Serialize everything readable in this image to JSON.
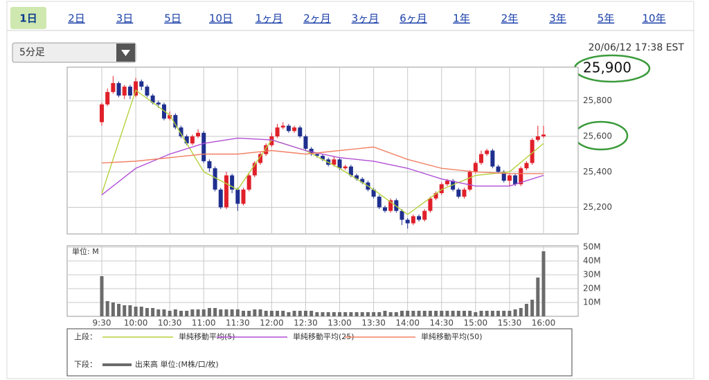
{
  "tabs": [
    "1日",
    "2日",
    "3日",
    "5日",
    "10日",
    "1ヶ月",
    "2ヶ月",
    "3ヶ月",
    "6ヶ月",
    "1年",
    "2年",
    "3年",
    "5年",
    "10年"
  ],
  "selected_tab": 0,
  "interval_select": "5分足",
  "timestamp": "20/06/12 17:38 EST",
  "current_price": "25,900",
  "chart_data": [
    {
      "type": "candlestick",
      "legend_label": "上段：",
      "up_color": "#e0202a",
      "down_color": "#1f2f8f",
      "open": [
        25680,
        25780,
        25850,
        25900,
        25830,
        25880,
        25830,
        25910,
        25880,
        25830,
        25790,
        25780,
        25700,
        25720,
        25650,
        25600,
        25560,
        25600,
        25620,
        25460,
        25420,
        25300,
        25200,
        25380,
        25300,
        25220,
        25300,
        25380,
        25450,
        25500,
        25550,
        25600,
        25650,
        25660,
        25630,
        25650,
        25600,
        25530,
        25500,
        25490,
        25470,
        25440,
        25470,
        25420,
        25430,
        25380,
        25360,
        25340,
        25300,
        25260,
        25200,
        25180,
        25240,
        25180,
        25130,
        25110,
        25150,
        25130,
        25180,
        25250,
        25280,
        25330,
        25350,
        25300,
        25260,
        25300,
        25400,
        25450,
        25500,
        25520,
        25430,
        25400,
        25350,
        25380,
        25330,
        25420,
        25450,
        25580,
        25600
      ],
      "high": [
        25790,
        25870,
        25940,
        25910,
        25890,
        25890,
        25930,
        25920,
        25890,
        25840,
        25800,
        25790,
        25740,
        25730,
        25660,
        25610,
        25610,
        25640,
        25630,
        25470,
        25430,
        25310,
        25400,
        25390,
        25310,
        25310,
        25390,
        25460,
        25510,
        25560,
        25620,
        25670,
        25680,
        25670,
        25660,
        25660,
        25610,
        25540,
        25510,
        25500,
        25480,
        25490,
        25480,
        25440,
        25440,
        25390,
        25370,
        25350,
        25310,
        25270,
        25210,
        25250,
        25250,
        25190,
        25140,
        25160,
        25160,
        25190,
        25260,
        25290,
        25340,
        25360,
        25360,
        25310,
        25310,
        25410,
        25460,
        25520,
        25530,
        25530,
        25440,
        25410,
        25390,
        25390,
        25430,
        25460,
        25590,
        25660,
        25660
      ],
      "low": [
        25660,
        25770,
        25840,
        25820,
        25810,
        25810,
        25820,
        25860,
        25820,
        25780,
        25760,
        25690,
        25690,
        25640,
        25590,
        25550,
        25550,
        25590,
        25450,
        25400,
        25290,
        25190,
        25190,
        25280,
        25180,
        25210,
        25290,
        25370,
        25440,
        25490,
        25540,
        25590,
        25640,
        25620,
        25620,
        25590,
        25520,
        25490,
        25480,
        25460,
        25430,
        25430,
        25410,
        25410,
        25370,
        25350,
        25330,
        25290,
        25250,
        25190,
        25170,
        25170,
        25170,
        25100,
        25080,
        25100,
        25120,
        25120,
        25170,
        25240,
        25270,
        25320,
        25290,
        25250,
        25250,
        25290,
        25390,
        25440,
        25490,
        25420,
        25390,
        25340,
        25320,
        25320,
        25320,
        25410,
        25440,
        25570,
        25590
      ],
      "close": [
        25780,
        25850,
        25900,
        25830,
        25880,
        25830,
        25910,
        25880,
        25830,
        25790,
        25780,
        25700,
        25720,
        25650,
        25600,
        25560,
        25600,
        25620,
        25460,
        25420,
        25300,
        25200,
        25380,
        25300,
        25220,
        25300,
        25380,
        25450,
        25500,
        25550,
        25600,
        25650,
        25660,
        25630,
        25650,
        25600,
        25530,
        25500,
        25490,
        25470,
        25440,
        25470,
        25420,
        25430,
        25380,
        25360,
        25340,
        25300,
        25260,
        25200,
        25180,
        25240,
        25180,
        25130,
        25110,
        25150,
        25130,
        25180,
        25250,
        25280,
        25330,
        25350,
        25300,
        25260,
        25300,
        25400,
        25450,
        25500,
        25520,
        25430,
        25400,
        25350,
        25380,
        25330,
        25420,
        25450,
        25580,
        25600,
        25610
      ],
      "series": [
        {
          "name": "単純移動平均(5)",
          "color": "#b3d13a",
          "x": [
            "9:30",
            "10:00",
            "10:30",
            "11:00",
            "11:30",
            "12:00",
            "12:30",
            "13:00",
            "13:30",
            "14:00",
            "14:30",
            "15:00",
            "15:30",
            "16:00"
          ],
          "values": [
            25277,
            25860,
            25720,
            25400,
            25300,
            25580,
            25520,
            25420,
            25300,
            25160,
            25300,
            25380,
            25400,
            25560
          ]
        },
        {
          "name": "単純移動平均(25)",
          "color": "#b04fd4",
          "x": [
            "9:30",
            "10:00",
            "10:30",
            "11:00",
            "11:30",
            "12:00",
            "12:30",
            "13:00",
            "13:30",
            "14:00",
            "14:30",
            "15:00",
            "15:30",
            "16:00"
          ],
          "values": [
            25270,
            25420,
            25500,
            25560,
            25590,
            25580,
            25520,
            25480,
            25460,
            25420,
            25360,
            25320,
            25320,
            25380
          ]
        },
        {
          "name": "単純移動平均(50)",
          "color": "#f08062",
          "x": [
            "9:30",
            "10:00",
            "10:30",
            "11:00",
            "11:30",
            "12:00",
            "12:30",
            "13:00",
            "13:30",
            "14:00",
            "14:30",
            "15:00",
            "15:30",
            "16:00"
          ],
          "values": [
            25450,
            25460,
            25480,
            25500,
            25500,
            25520,
            25500,
            25520,
            25540,
            25470,
            25420,
            25400,
            25390,
            25390
          ]
        }
      ],
      "ylim": [
        25050,
        25990
      ],
      "yticks": [
        {
          "value": 25200,
          "label": "25,200"
        },
        {
          "value": 25400,
          "label": "25,400"
        },
        {
          "value": 25600,
          "label": "25,600"
        },
        {
          "value": 25800,
          "label": "25,800"
        }
      ],
      "grid": true
    },
    {
      "type": "bar",
      "legend_label": "下段：",
      "unit_label": "単位: M",
      "name": "出来高 単位:(M株/口/枚)",
      "color": "#6b6b6b",
      "categories": [
        "9:30",
        null,
        null,
        null,
        null,
        null,
        "10:00",
        null,
        null,
        null,
        null,
        null,
        "10:30",
        null,
        null,
        null,
        null,
        null,
        "11:00",
        null,
        null,
        null,
        null,
        null,
        "11:30",
        null,
        null,
        null,
        null,
        null,
        "12:00",
        null,
        null,
        null,
        null,
        null,
        "12:30",
        null,
        null,
        null,
        null,
        null,
        "13:00",
        null,
        null,
        null,
        null,
        null,
        "13:30",
        null,
        null,
        null,
        null,
        null,
        "14:00",
        null,
        null,
        null,
        null,
        null,
        "14:30",
        null,
        null,
        null,
        null,
        null,
        "15:00",
        null,
        null,
        null,
        null,
        null,
        "15:30",
        null,
        null,
        null,
        null,
        null,
        "16:00"
      ],
      "values": [
        29,
        11,
        10,
        9,
        8,
        8,
        7,
        7,
        6,
        6,
        5,
        5,
        4,
        5,
        4,
        4,
        5,
        5,
        5,
        6,
        6,
        5,
        5,
        5,
        5,
        4,
        4,
        5,
        5,
        4,
        4,
        4,
        4,
        3,
        4,
        4,
        4,
        4,
        3,
        3,
        3,
        3,
        3,
        3,
        3,
        3,
        3,
        3,
        3,
        3,
        4,
        3,
        3,
        4,
        4,
        4,
        4,
        4,
        4,
        4,
        4,
        4,
        4,
        4,
        4,
        4,
        3,
        4,
        4,
        4,
        4,
        4,
        4,
        5,
        6,
        9,
        12,
        28,
        47
      ],
      "ylim": [
        0,
        51
      ],
      "yticks": [
        {
          "value": 10,
          "label": "10M"
        },
        {
          "value": 20,
          "label": "20M"
        },
        {
          "value": 30,
          "label": "30M"
        },
        {
          "value": 40,
          "label": "40M"
        },
        {
          "value": 50,
          "label": "50M"
        }
      ],
      "grid": true
    }
  ]
}
